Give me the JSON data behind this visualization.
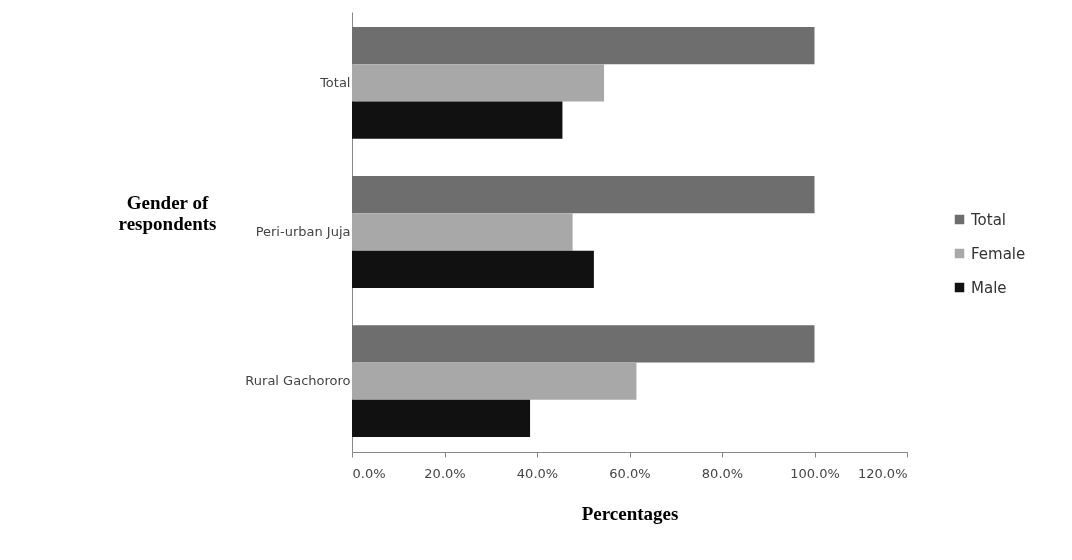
{
  "chart_data": {
    "type": "bar",
    "orientation": "horizontal",
    "xlabel": "Percentages",
    "ylabel": "Gender of respondents",
    "categories": [
      "Total",
      "Peri-urban Juja",
      "Rural Gachororo"
    ],
    "series": [
      {
        "name": "Total",
        "color": "#6e6e6e",
        "values": [
          100,
          100,
          100
        ]
      },
      {
        "name": "Female",
        "color": "#a8a8a8",
        "values": [
          54.5,
          47.7,
          61.5
        ]
      },
      {
        "name": "Male",
        "color": "#111111",
        "values": [
          45.5,
          52.3,
          38.5
        ]
      }
    ],
    "xlim": [
      0,
      120
    ],
    "xticks": [
      {
        "value": 0,
        "label": "0.0%"
      },
      {
        "value": 20,
        "label": "20.0%"
      },
      {
        "value": 40,
        "label": "40.0%"
      },
      {
        "value": 60,
        "label": "60.0%"
      },
      {
        "value": 80,
        "label": "80.0%"
      },
      {
        "value": 100,
        "label": "100.0%"
      },
      {
        "value": 120,
        "label": "120.0%"
      }
    ],
    "legend": "right",
    "grid": false
  }
}
